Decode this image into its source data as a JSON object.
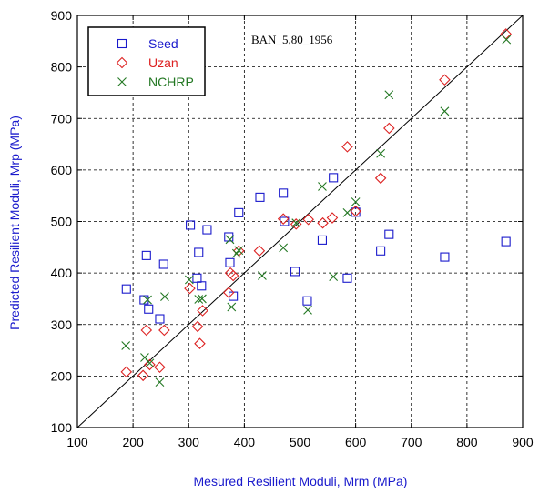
{
  "chart_data": {
    "type": "scatter",
    "title": "",
    "annotation": "BAN_5,80_1956",
    "xlabel": "Mesured Resilient Moduli, Mrm (MPa)",
    "ylabel": "Predicted Resilient Moduli, Mrp (MPa)",
    "xlim": [
      100,
      900
    ],
    "ylim": [
      100,
      900
    ],
    "xticks": [
      100,
      200,
      300,
      400,
      500,
      600,
      700,
      800,
      900
    ],
    "yticks": [
      100,
      200,
      300,
      400,
      500,
      600,
      700,
      800,
      900
    ],
    "grid": true,
    "grid_style": "dashed",
    "reference_line": "y = x",
    "legend_position": "top-left",
    "series": [
      {
        "name": "Seed",
        "marker": "square",
        "color": "#1a1acc",
        "points": [
          [
            188,
            369
          ],
          [
            220,
            348
          ],
          [
            224,
            434
          ],
          [
            228,
            330
          ],
          [
            248,
            311
          ],
          [
            255,
            417
          ],
          [
            303,
            493
          ],
          [
            315,
            390
          ],
          [
            318,
            440
          ],
          [
            323,
            375
          ],
          [
            333,
            484
          ],
          [
            372,
            470
          ],
          [
            374,
            420
          ],
          [
            380,
            355
          ],
          [
            390,
            517
          ],
          [
            428,
            547
          ],
          [
            470,
            555
          ],
          [
            472,
            500
          ],
          [
            491,
            403
          ],
          [
            513,
            346
          ],
          [
            540,
            464
          ],
          [
            560,
            585
          ],
          [
            585,
            390
          ],
          [
            600,
            518
          ],
          [
            645,
            443
          ],
          [
            660,
            475
          ],
          [
            760,
            431
          ],
          [
            870,
            461
          ]
        ]
      },
      {
        "name": "Uzan",
        "marker": "diamond",
        "color": "#dd2222",
        "points": [
          [
            188,
            208
          ],
          [
            218,
            201
          ],
          [
            224,
            289
          ],
          [
            230,
            222
          ],
          [
            248,
            217
          ],
          [
            256,
            289
          ],
          [
            302,
            370
          ],
          [
            316,
            296
          ],
          [
            320,
            263
          ],
          [
            325,
            327
          ],
          [
            372,
            362
          ],
          [
            375,
            400
          ],
          [
            380,
            395
          ],
          [
            390,
            443
          ],
          [
            427,
            443
          ],
          [
            470,
            505
          ],
          [
            493,
            495
          ],
          [
            515,
            504
          ],
          [
            541,
            497
          ],
          [
            558,
            507
          ],
          [
            585,
            645
          ],
          [
            600,
            520
          ],
          [
            645,
            584
          ],
          [
            660,
            681
          ],
          [
            760,
            775
          ],
          [
            870,
            864
          ]
        ]
      },
      {
        "name": "NCHRP",
        "marker": "x",
        "color": "#227722",
        "points": [
          [
            187,
            259
          ],
          [
            221,
            236
          ],
          [
            226,
            348
          ],
          [
            230,
            225
          ],
          [
            248,
            188
          ],
          [
            257,
            354
          ],
          [
            301,
            387
          ],
          [
            318,
            349
          ],
          [
            324,
            350
          ],
          [
            374,
            465
          ],
          [
            377,
            334
          ],
          [
            386,
            438
          ],
          [
            390,
            444
          ],
          [
            432,
            395
          ],
          [
            470,
            449
          ],
          [
            493,
            497
          ],
          [
            514,
            328
          ],
          [
            540,
            568
          ],
          [
            560,
            393
          ],
          [
            585,
            517
          ],
          [
            600,
            538
          ],
          [
            645,
            632
          ],
          [
            660,
            746
          ],
          [
            760,
            714
          ],
          [
            871,
            853
          ]
        ]
      }
    ]
  }
}
